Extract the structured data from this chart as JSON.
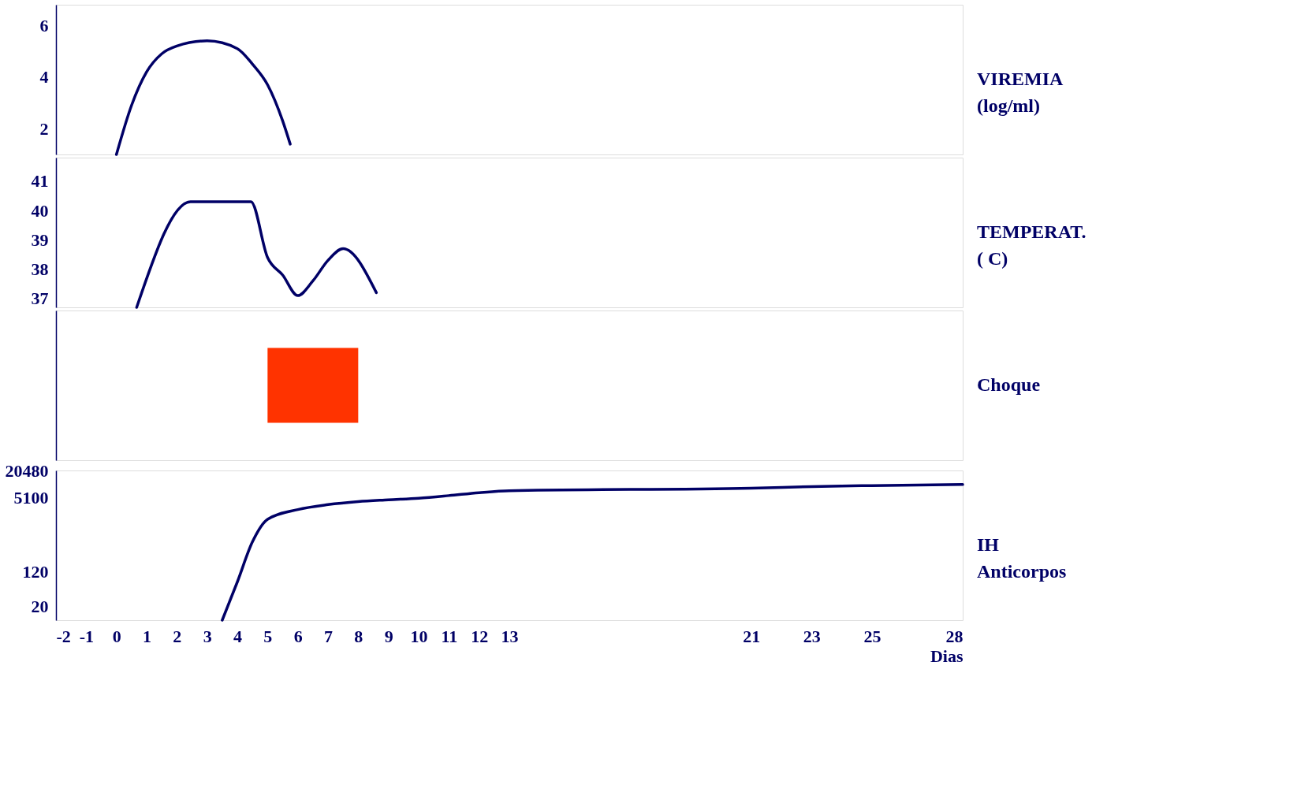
{
  "chart_data": [
    {
      "type": "line",
      "ylabel": "VIREMIA (log/ml)",
      "x": [
        0,
        0.5,
        1,
        1.5,
        2,
        3,
        4,
        4.5,
        5,
        5.5,
        5.75
      ],
      "series": [
        {
          "color": "#000066",
          "values": [
            1,
            2.9,
            4.2,
            4.9,
            5.2,
            5.4,
            5.1,
            4.5,
            3.7,
            2.3,
            1.4
          ]
        }
      ],
      "xlim": [
        -2,
        28
      ],
      "xticks": [
        -2,
        -1,
        0,
        1,
        2,
        3,
        4,
        5,
        6,
        7,
        8,
        9,
        10,
        11,
        12,
        13,
        21,
        23,
        25,
        28
      ],
      "ylim": [
        1,
        6.8
      ],
      "yticks": [
        2,
        4,
        6
      ],
      "tick_labels": "y",
      "line_style": "solid"
    },
    {
      "type": "line",
      "ylabel": "TEMPERAT. ( C)",
      "x": [
        0.67,
        2.45,
        4.45,
        5,
        5.5,
        6,
        6.5,
        7,
        7.5,
        8.6
      ],
      "series": [
        {
          "color": "#000066",
          "values": [
            36.7,
            40.3,
            40.3,
            38.4,
            37.8,
            37.1,
            37.6,
            38.3,
            38.7,
            37.2
          ]
        }
      ],
      "xlim": [
        -2,
        28
      ],
      "xticks": [
        -2,
        -1,
        0,
        1,
        2,
        3,
        4,
        5,
        6,
        7,
        8,
        9,
        10,
        11,
        12,
        13,
        21,
        23,
        25,
        28
      ],
      "ylim": [
        36.7,
        41.8
      ],
      "yticks": [
        37,
        38,
        39,
        40,
        41
      ],
      "tick_labels": "y",
      "line_style": "solid"
    },
    {
      "type": "bar",
      "orientation": "horizontal",
      "ylabel": "Choque",
      "categories": [
        null
      ],
      "base": [
        5
      ],
      "values": [
        3
      ],
      "color": "#ff3300",
      "xlim": [
        -2,
        28
      ],
      "xticks": [
        -2,
        -1,
        0,
        1,
        2,
        3,
        4,
        5,
        6,
        7,
        8,
        9,
        10,
        11,
        12,
        13,
        21,
        23,
        25,
        28
      ],
      "tick_labels": false
    },
    {
      "type": "line",
      "ylabel": "IH Anticorpos",
      "xlabel": "Dias",
      "x": [
        3.5,
        4,
        4.5,
        5,
        6,
        7,
        8,
        9,
        10,
        11,
        12,
        13,
        21,
        23,
        25,
        28
      ],
      "series": [
        {
          "color": "#000066",
          "values": [
            10,
            70,
            540,
            1700,
            2800,
            3600,
            4200,
            4600,
            5000,
            5700,
            6600,
            7300,
            8300,
            9000,
            9500,
            10000
          ]
        }
      ],
      "log": "y",
      "xlim": [
        -2,
        28
      ],
      "xticks": [
        -2,
        -1,
        0,
        1,
        2,
        3,
        4,
        5,
        6,
        7,
        8,
        9,
        10,
        11,
        12,
        13,
        21,
        23,
        25,
        28
      ],
      "ylim": [
        10,
        20480
      ],
      "yticks": [
        20,
        120,
        5100,
        20480
      ],
      "line_style": "solid"
    }
  ]
}
